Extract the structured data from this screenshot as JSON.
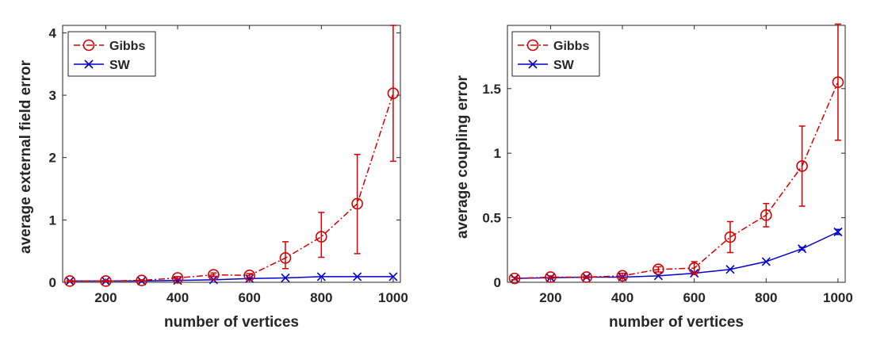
{
  "colors": {
    "gibbs": "#d40000",
    "sw": "#0000cc",
    "axis": "#262626"
  },
  "chart_data": [
    {
      "type": "line",
      "title": "",
      "xlabel": "number of vertices",
      "ylabel": "average external field error",
      "xlim": [
        80,
        1020
      ],
      "ylim": [
        0,
        4.12
      ],
      "xticks": [
        200,
        400,
        600,
        800,
        1000
      ],
      "xtick_labels": [
        "200",
        "400",
        "600",
        "800",
        "1000"
      ],
      "yticks": [
        0,
        1,
        2,
        3,
        4
      ],
      "ytick_labels": [
        "0",
        "1",
        "2",
        "3",
        "4"
      ],
      "legend_position": "top-left",
      "series": [
        {
          "name": "Gibbs",
          "color": "#d40000",
          "line_style": "dash-dot",
          "marker": "circle",
          "x": [
            100,
            200,
            300,
            400,
            500,
            600,
            700,
            800,
            900,
            1000
          ],
          "y": [
            0.02,
            0.02,
            0.03,
            0.07,
            0.12,
            0.11,
            0.39,
            0.73,
            1.26,
            3.03
          ],
          "err_low": [
            0.01,
            0.01,
            0.01,
            0.02,
            0.03,
            0.03,
            0.17,
            0.33,
            0.8,
            1.09
          ],
          "err_high": [
            0.01,
            0.01,
            0.01,
            0.02,
            0.03,
            0.03,
            0.26,
            0.39,
            0.79,
            1.09
          ]
        },
        {
          "name": "SW",
          "color": "#0000cc",
          "line_style": "solid",
          "marker": "x",
          "x": [
            100,
            200,
            300,
            400,
            500,
            600,
            700,
            800,
            900,
            1000
          ],
          "y": [
            0.02,
            0.02,
            0.02,
            0.03,
            0.04,
            0.06,
            0.07,
            0.09,
            0.09,
            0.09
          ],
          "err_low": [
            0,
            0,
            0,
            0,
            0,
            0,
            0,
            0,
            0,
            0
          ],
          "err_high": [
            0,
            0,
            0,
            0,
            0,
            0,
            0,
            0,
            0,
            0
          ]
        }
      ]
    },
    {
      "type": "line",
      "title": "",
      "xlabel": "number of vertices",
      "ylabel": "average coupling error",
      "xlim": [
        80,
        1020
      ],
      "ylim": [
        0,
        1.99
      ],
      "xticks": [
        200,
        400,
        600,
        800,
        1000
      ],
      "xtick_labels": [
        "200",
        "400",
        "600",
        "800",
        "1000"
      ],
      "yticks": [
        0,
        0.5,
        1,
        1.5
      ],
      "ytick_labels": [
        "0",
        "0.5",
        "1",
        "1.5"
      ],
      "legend_position": "top-left",
      "series": [
        {
          "name": "Gibbs",
          "color": "#d40000",
          "line_style": "dash-dot",
          "marker": "circle",
          "x": [
            100,
            200,
            300,
            400,
            500,
            600,
            700,
            800,
            900,
            1000
          ],
          "y": [
            0.03,
            0.04,
            0.04,
            0.05,
            0.1,
            0.11,
            0.35,
            0.52,
            0.9,
            1.55
          ],
          "err_low": [
            0.01,
            0.01,
            0.01,
            0.02,
            0.02,
            0.05,
            0.12,
            0.09,
            0.31,
            0.45
          ],
          "err_high": [
            0.01,
            0.01,
            0.01,
            0.02,
            0.02,
            0.05,
            0.12,
            0.09,
            0.31,
            0.45
          ]
        },
        {
          "name": "SW",
          "color": "#0000cc",
          "line_style": "solid",
          "marker": "x",
          "x": [
            100,
            200,
            300,
            400,
            500,
            600,
            700,
            800,
            900,
            1000
          ],
          "y": [
            0.03,
            0.035,
            0.04,
            0.04,
            0.05,
            0.07,
            0.1,
            0.16,
            0.26,
            0.39
          ],
          "err_low": [
            0,
            0,
            0,
            0,
            0,
            0,
            0,
            0,
            0.01,
            0.02
          ],
          "err_high": [
            0,
            0,
            0,
            0,
            0,
            0,
            0,
            0,
            0.01,
            0.02
          ]
        }
      ]
    }
  ]
}
